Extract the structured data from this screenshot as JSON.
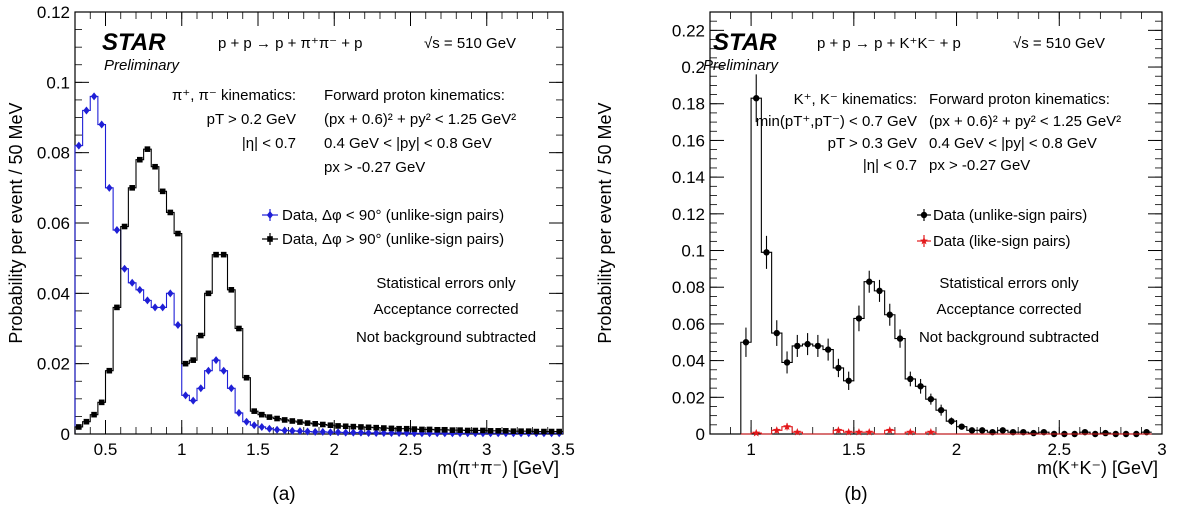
{
  "chart_data": [
    {
      "type": "line",
      "panel_caption": "(a)",
      "ylabel": "Probability per event / 50 MeV",
      "xlabel": "m(π⁺π⁻) [GeV]",
      "xlim": [
        0.3,
        3.5
      ],
      "ylim": [
        0,
        0.12
      ],
      "x_ticks": [
        "0.5",
        "1",
        "1.5",
        "2",
        "2.5",
        "3",
        "3.5"
      ],
      "y_ticks": [
        "0",
        "0.02",
        "0.04",
        "0.06",
        "0.08",
        "0.1",
        "0.12"
      ],
      "x_tick_values": [
        0.5,
        1,
        1.5,
        2,
        2.5,
        3,
        3.5
      ],
      "y_tick_values": [
        0,
        0.02,
        0.04,
        0.06,
        0.08,
        0.1,
        0.12
      ],
      "experiment_label": "STAR",
      "preliminary_label": "Preliminary",
      "reaction": "p + p → p + π⁺π⁻ + p",
      "energy": "√s = 510 GeV",
      "left_kinematics": [
        "π⁺, π⁻ kinematics:",
        "pT > 0.2 GeV",
        "|η| < 0.7"
      ],
      "right_kinematics": [
        "Forward proton kinematics:",
        "(px + 0.6)² + py² < 1.25 GeV²",
        "0.4 GeV < |py| < 0.8 GeV",
        "px > -0.27 GeV"
      ],
      "notes": [
        "Statistical errors only",
        "Acceptance corrected",
        "Not background subtracted"
      ],
      "bin_width": 0.05,
      "x": [
        0.325,
        0.375,
        0.425,
        0.475,
        0.525,
        0.575,
        0.625,
        0.675,
        0.725,
        0.775,
        0.825,
        0.875,
        0.925,
        0.975,
        1.025,
        1.075,
        1.125,
        1.175,
        1.225,
        1.275,
        1.325,
        1.375,
        1.425,
        1.475,
        1.525,
        1.575,
        1.625,
        1.675,
        1.725,
        1.775,
        1.825,
        1.875,
        1.925,
        1.975,
        2.025,
        2.075,
        2.125,
        2.175,
        2.225,
        2.275,
        2.325,
        2.375,
        2.425,
        2.475,
        2.525,
        2.575,
        2.625,
        2.675,
        2.725,
        2.775,
        2.825,
        2.875,
        2.925,
        2.975,
        3.025,
        3.075,
        3.125,
        3.175,
        3.225,
        3.275,
        3.325,
        3.375,
        3.425,
        3.475
      ],
      "series": [
        {
          "name": "Data, Δφ < 90° (unlike-sign pairs)",
          "color": "#1f1fd6",
          "marker": "diamond",
          "values": [
            0.082,
            0.092,
            0.096,
            0.088,
            0.07,
            0.058,
            0.047,
            0.043,
            0.041,
            0.038,
            0.036,
            0.036,
            0.04,
            0.031,
            0.011,
            0.0095,
            0.013,
            0.018,
            0.021,
            0.018,
            0.013,
            0.006,
            0.0035,
            0.0025,
            0.002,
            0.0015,
            0.0012,
            0.001,
            0.0009,
            0.0008,
            0.0007,
            0.0006,
            0.0006,
            0.0005,
            0.0005,
            0.0004,
            0.0004,
            0.0004,
            0.0003,
            0.0003,
            0.0003,
            0.0003,
            0.0003,
            0.0003,
            0.0002,
            0.0002,
            0.0002,
            0.0002,
            0.0002,
            0.0002,
            0.0002,
            0.0002,
            0.0002,
            0.0002,
            0.0002,
            0.0002,
            0.0002,
            0.0002,
            0.0002,
            0.0002,
            0.0002,
            0.0002,
            0.0002,
            0.0002
          ]
        },
        {
          "name": "Data, Δφ > 90° (unlike-sign pairs)",
          "color": "#000000",
          "marker": "square",
          "values": [
            0.002,
            0.0035,
            0.0055,
            0.009,
            0.018,
            0.036,
            0.059,
            0.07,
            0.078,
            0.081,
            0.076,
            0.069,
            0.063,
            0.057,
            0.02,
            0.021,
            0.028,
            0.04,
            0.051,
            0.051,
            0.041,
            0.03,
            0.016,
            0.0065,
            0.0055,
            0.0048,
            0.0044,
            0.004,
            0.0037,
            0.0034,
            0.0031,
            0.0029,
            0.0027,
            0.0025,
            0.0023,
            0.0022,
            0.0021,
            0.002,
            0.0019,
            0.0018,
            0.0017,
            0.0016,
            0.0015,
            0.0015,
            0.0014,
            0.0013,
            0.0013,
            0.0012,
            0.0012,
            0.0011,
            0.0011,
            0.001,
            0.001,
            0.001,
            0.0009,
            0.0009,
            0.0009,
            0.0008,
            0.0008,
            0.0008,
            0.0007,
            0.0007,
            0.0007,
            0.0007
          ]
        }
      ]
    },
    {
      "type": "line",
      "panel_caption": "(b)",
      "ylabel": "Probability per event / 50 MeV",
      "xlabel": "m(K⁺K⁻) [GeV]",
      "xlim": [
        0.8,
        3.0
      ],
      "ylim": [
        0,
        0.23
      ],
      "x_ticks": [
        "1",
        "1.5",
        "2",
        "2.5",
        "3"
      ],
      "y_ticks": [
        "0",
        "0.02",
        "0.04",
        "0.06",
        "0.08",
        "0.1",
        "0.12",
        "0.14",
        "0.16",
        "0.18",
        "0.2",
        "0.22"
      ],
      "x_tick_values": [
        1,
        1.5,
        2,
        2.5,
        3
      ],
      "y_tick_values": [
        0,
        0.02,
        0.04,
        0.06,
        0.08,
        0.1,
        0.12,
        0.14,
        0.16,
        0.18,
        0.2,
        0.22
      ],
      "experiment_label": "STAR",
      "preliminary_label": "Preliminary",
      "reaction": "p + p → p + K⁺K⁻ + p",
      "energy": "√s = 510 GeV",
      "left_kinematics": [
        "K⁺, K⁻ kinematics:",
        "min(pT⁺,pT⁻) < 0.7 GeV",
        "pT > 0.3 GeV",
        "|η| < 0.7"
      ],
      "right_kinematics": [
        "Forward proton kinematics:",
        "(px + 0.6)² + py² < 1.25 GeV²",
        "0.4 GeV < |py| < 0.8 GeV",
        "px > -0.27 GeV"
      ],
      "notes": [
        "Statistical errors only",
        "Acceptance corrected",
        "Not background subtracted"
      ],
      "bin_width": 0.05,
      "x": [
        0.975,
        1.025,
        1.075,
        1.125,
        1.175,
        1.225,
        1.275,
        1.325,
        1.375,
        1.425,
        1.475,
        1.525,
        1.575,
        1.625,
        1.675,
        1.725,
        1.775,
        1.825,
        1.875,
        1.925,
        1.975,
        2.025,
        2.075,
        2.125,
        2.175,
        2.225,
        2.275,
        2.325,
        2.375,
        2.425,
        2.475,
        2.525,
        2.575,
        2.625,
        2.675,
        2.725,
        2.775,
        2.825,
        2.875,
        2.925
      ],
      "series": [
        {
          "name": "Data (unlike-sign pairs)",
          "color": "#000000",
          "marker": "circle",
          "values": [
            0.05,
            0.183,
            0.099,
            0.055,
            0.039,
            0.048,
            0.049,
            0.048,
            0.046,
            0.036,
            0.029,
            0.063,
            0.083,
            0.078,
            0.065,
            0.052,
            0.03,
            0.026,
            0.019,
            0.013,
            0.007,
            0.004,
            0.002,
            0.002,
            0.001,
            0.002,
            0.001,
            0.001,
            0.0005,
            0.001,
            0.0,
            0.0,
            0.0,
            0.001,
            0.0,
            0.0005,
            0.0,
            0.0,
            0.0,
            0.001
          ],
          "errors": [
            0.008,
            0.013,
            0.009,
            0.007,
            0.006,
            0.006,
            0.006,
            0.006,
            0.006,
            0.005,
            0.005,
            0.007,
            0.006,
            0.006,
            0.006,
            0.005,
            0.004,
            0.004,
            0.003,
            0.003,
            0.002,
            0.0015,
            0.001,
            0.001,
            0.001,
            0.001,
            0.001,
            0.001,
            0.0005,
            0.001,
            0,
            0,
            0,
            0.001,
            0,
            0.0005,
            0,
            0,
            0,
            0.001
          ]
        },
        {
          "name": "Data (like-sign pairs)",
          "color": "#e3191c",
          "marker": "star",
          "values": [
            0.0,
            0.0005,
            0.0,
            0.002,
            0.004,
            0.001,
            0.0,
            0.0,
            0.0,
            0.002,
            0.001,
            0.001,
            0.001,
            0.0,
            0.002,
            0.0,
            0.001,
            0.0,
            0.001,
            0.0,
            0.0,
            0.0,
            0.0,
            0.0,
            0.0,
            0.0,
            0.0,
            0.0,
            0.0,
            0.0,
            0.0,
            0.0,
            0.0,
            0.0,
            0.0,
            0.0,
            0.0,
            0.0,
            0.0,
            0.0
          ],
          "errors": [
            0,
            0.001,
            0,
            0.0015,
            0.002,
            0.001,
            0,
            0,
            0,
            0.0015,
            0.001,
            0.001,
            0.001,
            0,
            0.0015,
            0,
            0.001,
            0,
            0.001,
            0,
            0,
            0,
            0,
            0,
            0,
            0,
            0,
            0,
            0,
            0,
            0,
            0,
            0,
            0,
            0,
            0,
            0,
            0,
            0,
            0
          ]
        }
      ]
    }
  ]
}
